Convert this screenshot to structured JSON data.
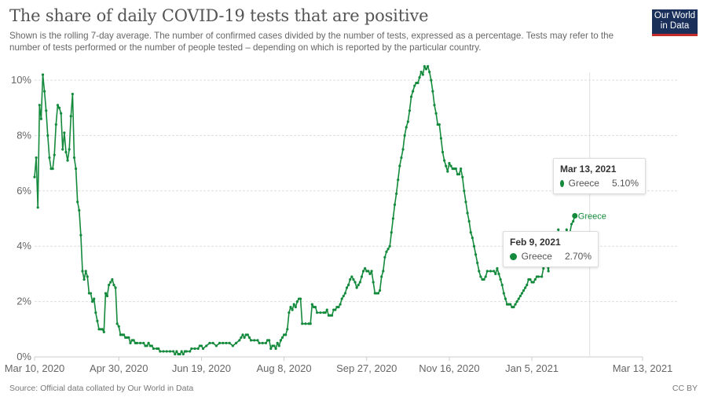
{
  "header": {
    "title": "The share of daily COVID-19 tests that are positive",
    "subtitle": "Shown is the rolling 7-day average. The number of confirmed cases divided by the number of tests, expressed as a percentage. Tests may refer to the number of tests performed or the number of people tested – depending on which is reported by the particular country.",
    "logo_line1": "Our World",
    "logo_line2": "in Data"
  },
  "footer": {
    "source": "Source: Official data collated by Our World in Data",
    "license": "CC BY"
  },
  "colors": {
    "series": "#148a3c",
    "grid": "#dddddd",
    "logo_bg": "#1a2f5a",
    "logo_accent": "#c52b2b"
  },
  "tooltips": [
    {
      "date": "Mar 13, 2021",
      "entity": "Greece",
      "value": "5.10%"
    },
    {
      "date": "Feb 9, 2021",
      "entity": "Greece",
      "value": "2.70%"
    }
  ],
  "chart_data": {
    "type": "line",
    "title": "The share of daily COVID-19 tests that are positive",
    "xlabel": "",
    "ylabel": "",
    "x_unit": "days since Mar 10, 2020",
    "xlim": [
      0,
      368
    ],
    "ylim": [
      0,
      10
    ],
    "grid": true,
    "yticks": [
      {
        "value": 0,
        "label": "0%"
      },
      {
        "value": 2,
        "label": "2%"
      },
      {
        "value": 4,
        "label": "4%"
      },
      {
        "value": 6,
        "label": "6%"
      },
      {
        "value": 8,
        "label": "8%"
      },
      {
        "value": 10,
        "label": "10%"
      }
    ],
    "xticks": [
      {
        "value": 0,
        "label": "Mar 10, 2020"
      },
      {
        "value": 51,
        "label": "Apr 30, 2020"
      },
      {
        "value": 101,
        "label": "Jun 19, 2020"
      },
      {
        "value": 151,
        "label": "Aug 8, 2020"
      },
      {
        "value": 201,
        "label": "Sep 27, 2020"
      },
      {
        "value": 251,
        "label": "Nov 16, 2020"
      },
      {
        "value": 301,
        "label": "Jan 5, 2021"
      },
      {
        "value": 368,
        "label": "Mar 13, 2021"
      }
    ],
    "hover_x": 336,
    "series": [
      {
        "name": "Greece",
        "end_label": "Greece",
        "points": [
          [
            0,
            6.5
          ],
          [
            1,
            7.2
          ],
          [
            2,
            5.4
          ],
          [
            3,
            9.1
          ],
          [
            4,
            8.6
          ],
          [
            5,
            10.2
          ],
          [
            6,
            9.6
          ],
          [
            7,
            8.9
          ],
          [
            8,
            8.0
          ],
          [
            9,
            7.2
          ],
          [
            10,
            6.8
          ],
          [
            11,
            6.8
          ],
          [
            12,
            7.3
          ],
          [
            13,
            8.4
          ],
          [
            14,
            9.1
          ],
          [
            15,
            9.0
          ],
          [
            16,
            8.8
          ],
          [
            17,
            7.5
          ],
          [
            18,
            8.1
          ],
          [
            19,
            7.4
          ],
          [
            20,
            7.1
          ],
          [
            21,
            7.5
          ],
          [
            22,
            8.7
          ],
          [
            23,
            9.5
          ],
          [
            24,
            7.2
          ],
          [
            25,
            6.8
          ],
          [
            26,
            5.6
          ],
          [
            27,
            5.3
          ],
          [
            28,
            4.4
          ],
          [
            29,
            3.1
          ],
          [
            30,
            2.8
          ],
          [
            31,
            3.1
          ],
          [
            32,
            2.9
          ],
          [
            33,
            2.3
          ],
          [
            34,
            2.3
          ],
          [
            35,
            2.0
          ],
          [
            36,
            2.1
          ],
          [
            37,
            1.6
          ],
          [
            38,
            1.3
          ],
          [
            39,
            1.0
          ],
          [
            40,
            1.0
          ],
          [
            41,
            1.0
          ],
          [
            42,
            0.9
          ],
          [
            43,
            2.3
          ],
          [
            44,
            2.2
          ],
          [
            45,
            2.6
          ],
          [
            46,
            2.7
          ],
          [
            47,
            2.8
          ],
          [
            48,
            2.6
          ],
          [
            49,
            2.5
          ],
          [
            50,
            1.2
          ],
          [
            51,
            1.1
          ],
          [
            52,
            0.8
          ],
          [
            53,
            0.8
          ],
          [
            54,
            0.8
          ],
          [
            55,
            0.7
          ],
          [
            56,
            0.7
          ],
          [
            57,
            0.7
          ],
          [
            58,
            0.5
          ],
          [
            59,
            0.6
          ],
          [
            60,
            0.6
          ],
          [
            61,
            0.5
          ],
          [
            62,
            0.5
          ],
          [
            64,
            0.5
          ],
          [
            66,
            0.5
          ],
          [
            67,
            0.4
          ],
          [
            68,
            0.4
          ],
          [
            69,
            0.5
          ],
          [
            70,
            0.4
          ],
          [
            71,
            0.4
          ],
          [
            72,
            0.3
          ],
          [
            74,
            0.3
          ],
          [
            75,
            0.3
          ],
          [
            76,
            0.2
          ],
          [
            78,
            0.2
          ],
          [
            80,
            0.2
          ],
          [
            82,
            0.2
          ],
          [
            84,
            0.2
          ],
          [
            85,
            0.1
          ],
          [
            86,
            0.2
          ],
          [
            87,
            0.1
          ],
          [
            88,
            0.1
          ],
          [
            89,
            0.2
          ],
          [
            90,
            0.1
          ],
          [
            91,
            0.2
          ],
          [
            92,
            0.2
          ],
          [
            94,
            0.2
          ],
          [
            95,
            0.3
          ],
          [
            97,
            0.3
          ],
          [
            99,
            0.3
          ],
          [
            100,
            0.4
          ],
          [
            101,
            0.4
          ],
          [
            102,
            0.3
          ],
          [
            104,
            0.4
          ],
          [
            106,
            0.5
          ],
          [
            108,
            0.5
          ],
          [
            110,
            0.4
          ],
          [
            112,
            0.5
          ],
          [
            114,
            0.5
          ],
          [
            116,
            0.5
          ],
          [
            118,
            0.5
          ],
          [
            120,
            0.4
          ],
          [
            122,
            0.5
          ],
          [
            124,
            0.6
          ],
          [
            125,
            0.7
          ],
          [
            126,
            0.8
          ],
          [
            127,
            0.7
          ],
          [
            128,
            0.8
          ],
          [
            129,
            0.8
          ],
          [
            130,
            0.7
          ],
          [
            131,
            0.6
          ],
          [
            133,
            0.6
          ],
          [
            135,
            0.6
          ],
          [
            136,
            0.5
          ],
          [
            138,
            0.5
          ],
          [
            140,
            0.5
          ],
          [
            141,
            0.6
          ],
          [
            142,
            0.6
          ],
          [
            143,
            0.3
          ],
          [
            144,
            0.4
          ],
          [
            145,
            0.4
          ],
          [
            146,
            0.3
          ],
          [
            147,
            0.5
          ],
          [
            148,
            0.4
          ],
          [
            149,
            0.6
          ],
          [
            150,
            0.7
          ],
          [
            151,
            0.8
          ],
          [
            152,
            0.8
          ],
          [
            153,
            1.0
          ],
          [
            154,
            1.6
          ],
          [
            155,
            1.8
          ],
          [
            156,
            1.7
          ],
          [
            157,
            1.9
          ],
          [
            158,
            1.8
          ],
          [
            159,
            2.0
          ],
          [
            160,
            2.1
          ],
          [
            161,
            2.1
          ],
          [
            162,
            1.2
          ],
          [
            164,
            1.2
          ],
          [
            166,
            1.2
          ],
          [
            167,
            1.2
          ],
          [
            168,
            1.9
          ],
          [
            169,
            1.8
          ],
          [
            170,
            1.8
          ],
          [
            171,
            1.6
          ],
          [
            173,
            1.6
          ],
          [
            175,
            1.6
          ],
          [
            176,
            1.6
          ],
          [
            177,
            1.7
          ],
          [
            178,
            1.5
          ],
          [
            179,
            1.5
          ],
          [
            180,
            1.5
          ],
          [
            181,
            1.7
          ],
          [
            182,
            1.7
          ],
          [
            183,
            1.8
          ],
          [
            184,
            1.8
          ],
          [
            185,
            1.9
          ],
          [
            186,
            2.1
          ],
          [
            187,
            2.2
          ],
          [
            188,
            2.3
          ],
          [
            189,
            2.5
          ],
          [
            190,
            2.6
          ],
          [
            191,
            2.8
          ],
          [
            192,
            2.9
          ],
          [
            193,
            2.8
          ],
          [
            194,
            2.7
          ],
          [
            195,
            2.5
          ],
          [
            196,
            2.6
          ],
          [
            197,
            2.7
          ],
          [
            198,
            2.9
          ],
          [
            199,
            3.1
          ],
          [
            200,
            3.2
          ],
          [
            201,
            3.1
          ],
          [
            202,
            3.1
          ],
          [
            203,
            3.0
          ],
          [
            204,
            3.1
          ],
          [
            205,
            2.7
          ],
          [
            206,
            2.3
          ],
          [
            207,
            2.3
          ],
          [
            208,
            2.3
          ],
          [
            209,
            2.4
          ],
          [
            210,
            2.9
          ],
          [
            211,
            3.1
          ],
          [
            212,
            3.6
          ],
          [
            213,
            3.8
          ],
          [
            214,
            3.9
          ],
          [
            215,
            4.0
          ],
          [
            216,
            4.5
          ],
          [
            217,
            5.0
          ],
          [
            218,
            5.5
          ],
          [
            219,
            5.9
          ],
          [
            220,
            6.4
          ],
          [
            221,
            6.9
          ],
          [
            222,
            7.2
          ],
          [
            223,
            7.5
          ],
          [
            224,
            8.0
          ],
          [
            225,
            8.3
          ],
          [
            226,
            8.5
          ],
          [
            227,
            8.9
          ],
          [
            228,
            9.4
          ],
          [
            229,
            9.6
          ],
          [
            230,
            9.8
          ],
          [
            231,
            9.9
          ],
          [
            232,
            9.9
          ],
          [
            233,
            10.1
          ],
          [
            234,
            10.3
          ],
          [
            235,
            10.2
          ],
          [
            236,
            10.5
          ],
          [
            237,
            10.4
          ],
          [
            238,
            10.5
          ],
          [
            239,
            10.3
          ],
          [
            240,
            10.0
          ],
          [
            241,
            9.6
          ],
          [
            242,
            9.1
          ],
          [
            243,
            8.8
          ],
          [
            244,
            8.4
          ],
          [
            245,
            8.4
          ],
          [
            246,
            7.9
          ],
          [
            247,
            7.4
          ],
          [
            248,
            7.1
          ],
          [
            249,
            6.9
          ],
          [
            250,
            6.7
          ],
          [
            251,
            7.0
          ],
          [
            252,
            6.9
          ],
          [
            253,
            6.8
          ],
          [
            254,
            6.8
          ],
          [
            255,
            6.8
          ],
          [
            256,
            6.6
          ],
          [
            257,
            6.6
          ],
          [
            258,
            6.8
          ],
          [
            259,
            6.5
          ],
          [
            260,
            6.0
          ],
          [
            261,
            5.6
          ],
          [
            262,
            5.2
          ],
          [
            263,
            4.9
          ],
          [
            264,
            4.5
          ],
          [
            265,
            4.3
          ],
          [
            266,
            4.0
          ],
          [
            267,
            3.7
          ],
          [
            268,
            3.4
          ],
          [
            269,
            3.1
          ],
          [
            270,
            2.9
          ],
          [
            271,
            2.8
          ],
          [
            272,
            2.8
          ],
          [
            273,
            2.9
          ],
          [
            274,
            3.1
          ],
          [
            276,
            3.1
          ],
          [
            278,
            3.1
          ],
          [
            279,
            3.0
          ],
          [
            280,
            3.2
          ],
          [
            281,
            3.0
          ],
          [
            282,
            2.8
          ],
          [
            283,
            2.6
          ],
          [
            284,
            2.3
          ],
          [
            285,
            2.1
          ],
          [
            286,
            1.9
          ],
          [
            287,
            1.9
          ],
          [
            288,
            1.9
          ],
          [
            289,
            1.8
          ],
          [
            290,
            1.8
          ],
          [
            291,
            1.9
          ],
          [
            292,
            2.0
          ],
          [
            293,
            2.1
          ],
          [
            294,
            2.2
          ],
          [
            295,
            2.3
          ],
          [
            296,
            2.4
          ],
          [
            297,
            2.5
          ],
          [
            298,
            2.6
          ],
          [
            299,
            2.8
          ],
          [
            300,
            2.8
          ],
          [
            301,
            2.7
          ],
          [
            302,
            2.7
          ],
          [
            303,
            2.8
          ],
          [
            304,
            2.9
          ],
          [
            305,
            2.9
          ],
          [
            307,
            2.9
          ],
          [
            308,
            3.2
          ],
          [
            309,
            3.4
          ],
          [
            310,
            3.4
          ],
          [
            311,
            3.1
          ],
          [
            312,
            3.7
          ],
          [
            313,
            3.8
          ],
          [
            314,
            3.8
          ],
          [
            315,
            3.9
          ],
          [
            316,
            4.0
          ],
          [
            317,
            4.6
          ],
          [
            318,
            4.2
          ],
          [
            319,
            4.2
          ],
          [
            320,
            4.3
          ],
          [
            321,
            4.3
          ],
          [
            322,
            4.6
          ],
          [
            323,
            4.4
          ],
          [
            324,
            4.5
          ],
          [
            325,
            4.8
          ],
          [
            326,
            4.9
          ],
          [
            327,
            5.1
          ]
        ]
      }
    ]
  }
}
